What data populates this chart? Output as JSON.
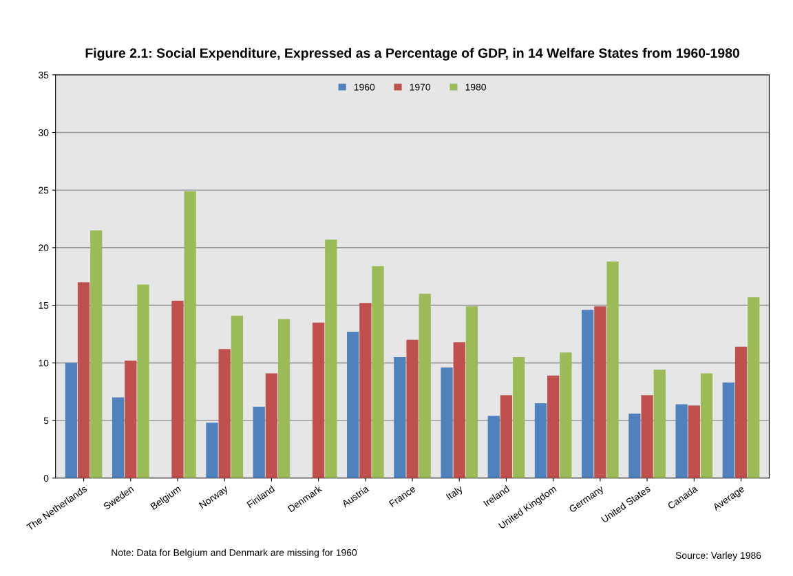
{
  "chart_data": {
    "type": "bar",
    "title": "Figure 2.1: Social Expenditure, Expressed as a Percentage of GDP, in 14 Welfare States from 1960-1980",
    "categories": [
      "The Netherlands",
      "Sweden",
      "Belgium",
      "Norway",
      "Finland",
      "Denmark",
      "Austria",
      "France",
      "Italy",
      "Ireland",
      "United Kingdom",
      "Germany",
      "United States",
      "Canada",
      "Average"
    ],
    "series": [
      {
        "name": "1960",
        "color": "#4f81bd",
        "values": [
          10.0,
          7.0,
          null,
          4.8,
          6.2,
          null,
          12.7,
          10.5,
          9.6,
          5.4,
          6.5,
          14.6,
          5.6,
          6.4,
          8.3
        ]
      },
      {
        "name": "1970",
        "color": "#c0504d",
        "values": [
          17.0,
          10.2,
          15.4,
          11.2,
          9.1,
          13.5,
          15.2,
          12.0,
          11.8,
          7.2,
          8.9,
          14.9,
          7.2,
          6.3,
          11.4
        ]
      },
      {
        "name": "1980",
        "color": "#9bbb59",
        "values": [
          21.5,
          16.8,
          24.9,
          14.1,
          13.8,
          20.7,
          18.4,
          16.0,
          14.9,
          10.5,
          10.9,
          18.8,
          9.4,
          9.1,
          15.7
        ]
      }
    ],
    "ylim": [
      0,
      35
    ],
    "yticks": [
      0,
      5,
      10,
      15,
      20,
      25,
      30,
      35
    ],
    "grid": "y",
    "legend": "top",
    "annotations": [
      "Note: Data for Belgium and Denmark are missing for 1960",
      "Source: Varley 1986"
    ]
  }
}
